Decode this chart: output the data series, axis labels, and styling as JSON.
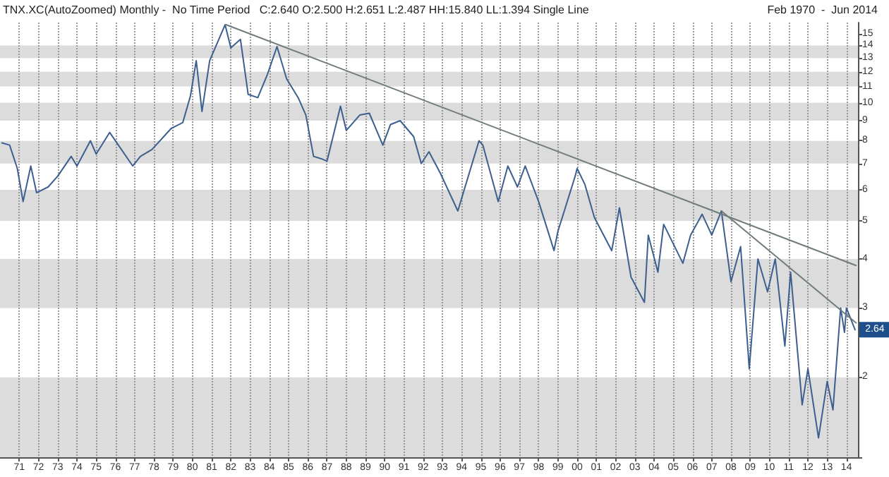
{
  "chart_data": {
    "type": "line",
    "title": "TNX.XC(AutoZoomed) Monthly -  No Time Period   C:2.640 O:2.500 H:2.651 L:2.487 HH:15.840 LL:1.394 Single Line",
    "subtitle": "Feb 1970  -  Jun 2014",
    "series": [
      {
        "color": "#3d5f8f",
        "x": [
          1970.1,
          1970.5,
          1970.9,
          1971.2,
          1971.6,
          1971.9,
          1972.5,
          1973.0,
          1973.7,
          1974.0,
          1974.7,
          1975.0,
          1975.7,
          1976.9,
          1977.3,
          1977.9,
          1978.9,
          1979.5,
          1979.9,
          1980.2,
          1980.5,
          1980.9,
          1981.7,
          1982.0,
          1982.5,
          1982.9,
          1983.4,
          1983.9,
          1984.4,
          1984.9,
          1985.5,
          1985.9,
          1986.3,
          1986.7,
          1987.0,
          1987.7,
          1988.0,
          1988.7,
          1989.2,
          1989.9,
          1990.3,
          1990.8,
          1991.5,
          1991.9,
          1992.3,
          1992.9,
          1993.8,
          1994.9,
          1995.1,
          1995.9,
          1996.4,
          1996.9,
          1997.3,
          1998.0,
          1998.8,
          1999.0,
          1999.9,
          2000.0,
          2000.4,
          2000.9,
          2001.8,
          2002.2,
          2002.8,
          2003.5,
          2003.7,
          2004.2,
          2004.5,
          2005.5,
          2005.9,
          2006.5,
          2007.0,
          2007.5,
          2008.0,
          2008.5,
          2008.95,
          2009.4,
          2009.9,
          2010.3,
          2010.8,
          2011.1,
          2011.7,
          2012.0,
          2012.55,
          2013.0,
          2013.3,
          2013.7,
          2013.9,
          2014.0,
          2014.45
        ],
        "values": [
          7.9,
          7.8,
          6.8,
          5.6,
          6.9,
          5.9,
          6.1,
          6.5,
          7.3,
          6.9,
          8.0,
          7.4,
          8.4,
          6.9,
          7.3,
          7.6,
          8.6,
          8.9,
          10.4,
          12.8,
          9.5,
          12.8,
          15.8,
          13.8,
          14.5,
          10.5,
          10.3,
          11.8,
          13.9,
          11.5,
          10.3,
          9.3,
          7.3,
          7.2,
          7.1,
          9.8,
          8.5,
          9.3,
          9.4,
          7.8,
          8.8,
          9.0,
          8.2,
          7.0,
          7.5,
          6.6,
          5.3,
          8.0,
          7.8,
          5.6,
          6.9,
          6.1,
          6.9,
          5.6,
          4.2,
          4.7,
          6.5,
          6.8,
          6.2,
          5.1,
          4.2,
          5.4,
          3.6,
          3.1,
          4.6,
          3.7,
          4.9,
          3.9,
          4.6,
          5.2,
          4.6,
          5.3,
          3.5,
          4.3,
          2.1,
          4.0,
          3.3,
          4.0,
          2.4,
          3.7,
          1.7,
          2.1,
          1.4,
          1.95,
          1.65,
          3.0,
          2.6,
          3.0,
          2.64
        ]
      },
      {
        "color": "#707c7c",
        "x": [
          1981.75,
          2014.5
        ],
        "values": [
          15.8,
          3.85
        ]
      },
      {
        "color": "#707c7c",
        "x": [
          2007.5,
          2014.5
        ],
        "values": [
          5.3,
          2.75
        ]
      }
    ],
    "xlim": [
      1970.0,
      2014.6
    ],
    "xticks": [
      {
        "value": 1971,
        "label": "71"
      },
      {
        "value": 1972,
        "label": "72"
      },
      {
        "value": 1973,
        "label": "73"
      },
      {
        "value": 1974,
        "label": "74"
      },
      {
        "value": 1975,
        "label": "75"
      },
      {
        "value": 1976,
        "label": "76"
      },
      {
        "value": 1977,
        "label": "77"
      },
      {
        "value": 1978,
        "label": "78"
      },
      {
        "value": 1979,
        "label": "79"
      },
      {
        "value": 1980,
        "label": "80"
      },
      {
        "value": 1981,
        "label": "81"
      },
      {
        "value": 1982,
        "label": "82"
      },
      {
        "value": 1983,
        "label": "83"
      },
      {
        "value": 1984,
        "label": "84"
      },
      {
        "value": 1985,
        "label": "85"
      },
      {
        "value": 1986,
        "label": "86"
      },
      {
        "value": 1987,
        "label": "87"
      },
      {
        "value": 1988,
        "label": "88"
      },
      {
        "value": 1989,
        "label": "89"
      },
      {
        "value": 1990,
        "label": "90"
      },
      {
        "value": 1991,
        "label": "91"
      },
      {
        "value": 1992,
        "label": "92"
      },
      {
        "value": 1993,
        "label": "93"
      },
      {
        "value": 1994,
        "label": "94"
      },
      {
        "value": 1995,
        "label": "95"
      },
      {
        "value": 1996,
        "label": "96"
      },
      {
        "value": 1997,
        "label": "97"
      },
      {
        "value": 1998,
        "label": "98"
      },
      {
        "value": 1999,
        "label": "99"
      },
      {
        "value": 2000,
        "label": "00"
      },
      {
        "value": 2001,
        "label": "01"
      },
      {
        "value": 2002,
        "label": "02"
      },
      {
        "value": 2003,
        "label": "03"
      },
      {
        "value": 2004,
        "label": "04"
      },
      {
        "value": 2005,
        "label": "05"
      },
      {
        "value": 2006,
        "label": "06"
      },
      {
        "value": 2007,
        "label": "07"
      },
      {
        "value": 2008,
        "label": "08"
      },
      {
        "value": 2009,
        "label": "09"
      },
      {
        "value": 2010,
        "label": "10"
      },
      {
        "value": 2011,
        "label": "11"
      },
      {
        "value": 2012,
        "label": "12"
      },
      {
        "value": 2013,
        "label": "13"
      },
      {
        "value": 2014,
        "label": "14"
      }
    ],
    "ylim": [
      1.25,
      16
    ],
    "yticks": [
      2,
      3,
      4,
      5,
      6,
      7,
      8,
      9,
      10,
      11,
      12,
      13,
      14,
      15
    ],
    "log": true,
    "grid": true,
    "annotations": [
      {
        "text": "2.64",
        "x": 2014.45,
        "y": 2.64
      }
    ]
  }
}
